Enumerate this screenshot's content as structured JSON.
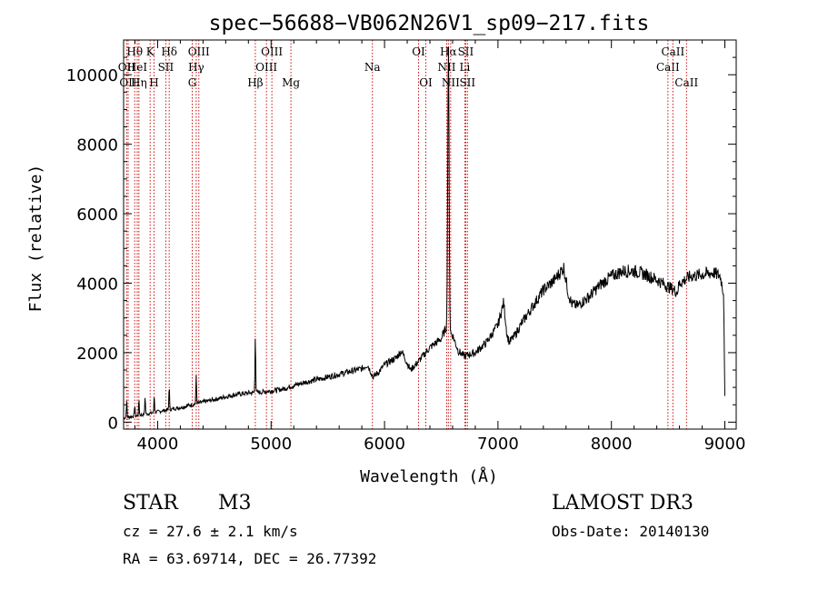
{
  "chart_data": {
    "type": "line",
    "title": "spec−56688−VB062N26V1_sp09−217.fits",
    "xlabel": "Wavelength (Å)",
    "ylabel": "Flux (relative)",
    "xlim": [
      3700,
      9100
    ],
    "ylim": [
      -200,
      11000
    ],
    "xticks": [
      4000,
      5000,
      6000,
      7000,
      8000,
      9000
    ],
    "yticks": [
      0,
      2000,
      4000,
      6000,
      8000,
      10000
    ],
    "xtick_labels": [
      "4000",
      "5000",
      "6000",
      "7000",
      "8000",
      "9000"
    ],
    "ytick_labels": [
      "0",
      "2000",
      "4000",
      "6000",
      "8000",
      "10000"
    ],
    "lines": [
      {
        "name": "OII",
        "wave": 3727,
        "row": 1,
        "label": "OII"
      },
      {
        "name": "OII-2",
        "wave": 3740,
        "row": 2,
        "label": "OII"
      },
      {
        "name": "Htheta",
        "wave": 3798,
        "row": 0,
        "label": "Hθ"
      },
      {
        "name": "HeI",
        "wave": 3820,
        "row": 1,
        "label": "HeI"
      },
      {
        "name": "Heta",
        "wave": 3835,
        "row": 2,
        "label": "Hη"
      },
      {
        "name": "K",
        "wave": 3934,
        "row": 0,
        "label": "K"
      },
      {
        "name": "SII",
        "wave": 4072,
        "row": 1,
        "label": "SII"
      },
      {
        "name": "H",
        "wave": 3968,
        "row": 2,
        "label": "H"
      },
      {
        "name": "Hdelta",
        "wave": 4102,
        "row": 0,
        "label": "Hδ"
      },
      {
        "name": "OIII-1",
        "wave": 4363,
        "row": 0,
        "label": "OIII"
      },
      {
        "name": "Hgamma",
        "wave": 4340,
        "row": 1,
        "label": "Hγ"
      },
      {
        "name": "G",
        "wave": 4305,
        "row": 2,
        "label": "G"
      },
      {
        "name": "Hbeta",
        "wave": 4861,
        "row": 2,
        "label": "Hβ"
      },
      {
        "name": "OIII-2",
        "wave": 4959,
        "row": 1,
        "label": "OIII"
      },
      {
        "name": "OIII-3",
        "wave": 5007,
        "row": 0,
        "label": "OIII"
      },
      {
        "name": "Mg",
        "wave": 5175,
        "row": 2,
        "label": "Mg"
      },
      {
        "name": "Na",
        "wave": 5893,
        "row": 1,
        "label": "Na"
      },
      {
        "name": "OI-1",
        "wave": 6300,
        "row": 0,
        "label": "OI"
      },
      {
        "name": "OI-2",
        "wave": 6364,
        "row": 2,
        "label": "OI"
      },
      {
        "name": "NII-1",
        "wave": 6548,
        "row": 1,
        "label": "NII"
      },
      {
        "name": "Halpha",
        "wave": 6563,
        "row": 0,
        "label": "Hα"
      },
      {
        "name": "NII-2",
        "wave": 6583,
        "row": 2,
        "label": "NII"
      },
      {
        "name": "SII-1",
        "wave": 6716,
        "row": 0,
        "label": "SII"
      },
      {
        "name": "Li",
        "wave": 6708,
        "row": 1,
        "label": "Li"
      },
      {
        "name": "SII-2",
        "wave": 6731,
        "row": 2,
        "label": "SII"
      },
      {
        "name": "CaII-1",
        "wave": 8498,
        "row": 1,
        "label": "CaII"
      },
      {
        "name": "CaII-2",
        "wave": 8542,
        "row": 0,
        "label": "CaII"
      },
      {
        "name": "CaII-3",
        "wave": 8662,
        "row": 2,
        "label": "CaII"
      }
    ],
    "continuum": [
      [
        3700,
        120
      ],
      [
        3800,
        180
      ],
      [
        3900,
        230
      ],
      [
        4000,
        300
      ],
      [
        4100,
        360
      ],
      [
        4200,
        420
      ],
      [
        4300,
        500
      ],
      [
        4400,
        580
      ],
      [
        4500,
        650
      ],
      [
        4600,
        730
      ],
      [
        4700,
        800
      ],
      [
        4800,
        840
      ],
      [
        4900,
        860
      ],
      [
        5000,
        900
      ],
      [
        5100,
        950
      ],
      [
        5200,
        1050
      ],
      [
        5300,
        1150
      ],
      [
        5400,
        1220
      ],
      [
        5500,
        1300
      ],
      [
        5600,
        1380
      ],
      [
        5700,
        1460
      ],
      [
        5800,
        1540
      ],
      [
        5850,
        1650
      ],
      [
        5900,
        1300
      ],
      [
        5950,
        1450
      ],
      [
        6000,
        1650
      ],
      [
        6100,
        1850
      ],
      [
        6150,
        2050
      ],
      [
        6200,
        1700
      ],
      [
        6230,
        1500
      ],
      [
        6300,
        1750
      ],
      [
        6400,
        2150
      ],
      [
        6500,
        2400
      ],
      [
        6540,
        2700
      ],
      [
        6600,
        2500
      ],
      [
        6650,
        2050
      ],
      [
        6700,
        1900
      ],
      [
        6800,
        2000
      ],
      [
        6900,
        2300
      ],
      [
        7000,
        2800
      ],
      [
        7050,
        3450
      ],
      [
        7080,
        2500
      ],
      [
        7100,
        2300
      ],
      [
        7150,
        2500
      ],
      [
        7200,
        2800
      ],
      [
        7300,
        3300
      ],
      [
        7400,
        3800
      ],
      [
        7500,
        4100
      ],
      [
        7580,
        4450
      ],
      [
        7620,
        3700
      ],
      [
        7650,
        3400
      ],
      [
        7700,
        3350
      ],
      [
        7800,
        3600
      ],
      [
        7900,
        3950
      ],
      [
        8000,
        4200
      ],
      [
        8100,
        4350
      ],
      [
        8200,
        4350
      ],
      [
        8300,
        4250
      ],
      [
        8400,
        4100
      ],
      [
        8500,
        3900
      ],
      [
        8580,
        3750
      ],
      [
        8600,
        4000
      ],
      [
        8700,
        4200
      ],
      [
        8800,
        4250
      ],
      [
        8900,
        4300
      ],
      [
        8960,
        4200
      ],
      [
        8990,
        3700
      ],
      [
        9000,
        700
      ]
    ],
    "emission": [
      {
        "wave": 3727,
        "peak": 600
      },
      {
        "wave": 3798,
        "peak": 500
      },
      {
        "wave": 3835,
        "peak": 650
      },
      {
        "wave": 3889,
        "peak": 750
      },
      {
        "wave": 3970,
        "peak": 800
      },
      {
        "wave": 4102,
        "peak": 1050
      },
      {
        "wave": 4340,
        "peak": 1350
      },
      {
        "wave": 4861,
        "peak": 2550
      },
      {
        "wave": 6563,
        "peak": 10800
      }
    ],
    "annotations": {
      "object_class": "STAR",
      "subclass": "M3",
      "survey": "LAMOST DR3",
      "redshift_text": "cz = 27.6 ± 2.1 km/s",
      "obs_date_text": "Obs-Date: 20140130",
      "coords_text": "RA =  63.69714, DEC =  26.77392"
    }
  },
  "colors": {
    "axis": "#000000",
    "spectrum": "#000000",
    "line_marker": "#cc1010",
    "background": "#ffffff"
  }
}
